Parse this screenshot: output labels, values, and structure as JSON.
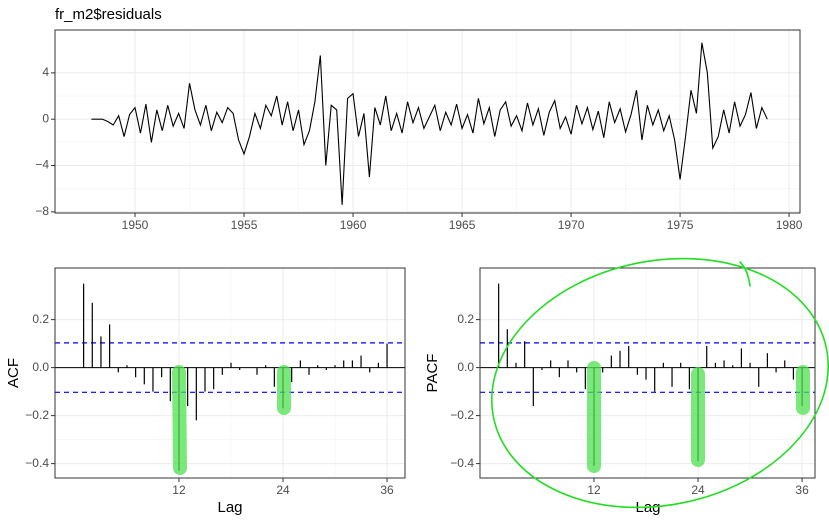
{
  "chart_data": [
    {
      "type": "line",
      "title": "fr_m2$residuals",
      "color": "#000000",
      "grid": true,
      "x": [
        1948,
        1948.25,
        1948.5,
        1948.75,
        1949,
        1949.25,
        1949.5,
        1949.75,
        1950,
        1950.25,
        1950.5,
        1950.75,
        1951,
        1951.25,
        1951.5,
        1951.75,
        1952,
        1952.25,
        1952.5,
        1952.75,
        1953,
        1953.25,
        1953.5,
        1953.75,
        1954,
        1954.25,
        1954.5,
        1954.75,
        1955,
        1955.25,
        1955.5,
        1955.75,
        1956,
        1956.25,
        1956.5,
        1956.75,
        1957,
        1957.25,
        1957.5,
        1957.75,
        1958,
        1958.25,
        1958.5,
        1958.75,
        1959,
        1959.25,
        1959.5,
        1959.75,
        1960,
        1960.25,
        1960.5,
        1960.75,
        1961,
        1961.25,
        1961.5,
        1961.75,
        1962,
        1962.25,
        1962.5,
        1962.75,
        1963,
        1963.25,
        1963.5,
        1963.75,
        1964,
        1964.25,
        1964.5,
        1964.75,
        1965,
        1965.25,
        1965.5,
        1965.75,
        1966,
        1966.25,
        1966.5,
        1966.75,
        1967,
        1967.25,
        1967.5,
        1967.75,
        1968,
        1968.25,
        1968.5,
        1968.75,
        1969,
        1969.25,
        1969.5,
        1969.75,
        1970,
        1970.25,
        1970.5,
        1970.75,
        1971,
        1971.25,
        1971.5,
        1971.75,
        1972,
        1972.25,
        1972.5,
        1972.75,
        1973,
        1973.25,
        1973.5,
        1973.75,
        1974,
        1974.25,
        1974.5,
        1974.75,
        1975,
        1975.25,
        1975.5,
        1975.75,
        1976,
        1976.25,
        1976.5,
        1976.75,
        1977,
        1977.25,
        1977.5,
        1977.75,
        1978,
        1978.25,
        1978.5,
        1978.75,
        1979
      ],
      "values": [
        0,
        0,
        0,
        -0.2,
        -0.5,
        0.3,
        -1.5,
        0.4,
        1.0,
        -1.2,
        1.3,
        -2.0,
        0.8,
        -1.0,
        1.2,
        -0.6,
        0.5,
        -0.8,
        3.1,
        0.8,
        -0.5,
        1.2,
        -1.0,
        0.6,
        -0.3,
        1.0,
        0.5,
        -1.8,
        -3.0,
        -1.5,
        0.5,
        -0.8,
        1.2,
        0.3,
        2.0,
        -0.5,
        1.5,
        -1.0,
        0.8,
        -2.2,
        -1.0,
        1.5,
        5.5,
        -4.0,
        1.2,
        0.8,
        -7.4,
        1.8,
        2.2,
        -1.5,
        0.5,
        -5.0,
        1.0,
        -0.5,
        2.0,
        -1.0,
        0.5,
        -1.2,
        1.5,
        -0.3,
        1.0,
        -0.8,
        0.2,
        1.2,
        -1.0,
        0.6,
        -0.5,
        1.3,
        -0.8,
        0.4,
        -1.2,
        1.8,
        -0.4,
        1.0,
        -1.5,
        0.8,
        1.5,
        -0.6,
        0.3,
        -1.0,
        1.4,
        -0.5,
        0.9,
        -1.4,
        0.6,
        1.6,
        -0.8,
        0.2,
        -1.3,
        1.2,
        -0.4,
        1.0,
        -0.9,
        0.7,
        -1.6,
        1.5,
        -0.3,
        0.9,
        -1.1,
        0.4,
        2.5,
        -1.8,
        1.2,
        -0.5,
        0.8,
        -1.0,
        0.3,
        -1.8,
        -5.2,
        -1.5,
        2.5,
        0.5,
        6.6,
        4.0,
        -2.5,
        -1.5,
        0.8,
        -1.2,
        1.5,
        -0.6,
        0.4,
        2.3,
        -0.8,
        1.0,
        0.0
      ],
      "xlim": [
        1946.33,
        1980.5
      ],
      "xticks": [
        1950,
        1955,
        1960,
        1965,
        1970,
        1975,
        1980
      ],
      "ylim": [
        -8.1,
        7.7
      ],
      "yticks": [
        {
          "value": -8,
          "label": "−8"
        },
        {
          "value": -4,
          "label": "−4"
        },
        0,
        4
      ]
    },
    {
      "type": "bar",
      "ylabel": "ACF",
      "xlabel": "Lag",
      "color": "#000000",
      "grid": true,
      "conf_limit": 0.103,
      "conf_color": "#0000ff",
      "x": [
        1,
        2,
        3,
        4,
        5,
        6,
        7,
        8,
        9,
        10,
        11,
        12,
        13,
        14,
        15,
        16,
        17,
        18,
        19,
        20,
        21,
        22,
        23,
        24,
        25,
        26,
        27,
        28,
        29,
        30,
        31,
        32,
        33,
        34,
        35,
        36
      ],
      "values": [
        0.35,
        0.27,
        0.13,
        0.18,
        -0.02,
        0.01,
        -0.04,
        -0.07,
        -0.1,
        -0.04,
        -0.14,
        -0.43,
        -0.16,
        -0.22,
        -0.1,
        -0.09,
        -0.03,
        0.02,
        -0.01,
        0.0,
        -0.03,
        0.01,
        -0.08,
        -0.17,
        -0.06,
        0.03,
        -0.03,
        0.01,
        -0.01,
        0.01,
        0.03,
        0.03,
        0.05,
        -0.02,
        0.02,
        0.1
      ],
      "xlim": [
        -2.3,
        38.07
      ],
      "xticks": [
        12,
        24,
        36
      ],
      "ylim": [
        -0.46,
        0.415
      ],
      "yticks": [
        {
          "value": -0.4,
          "label": "−0.4"
        },
        {
          "value": -0.2,
          "label": "−0.2"
        },
        {
          "value": 0,
          "label": "0.0"
        },
        0.2
      ]
    },
    {
      "type": "bar",
      "ylabel": "PACF",
      "xlabel": "Lag",
      "color": "#000000",
      "grid": true,
      "conf_limit": 0.103,
      "conf_color": "#0000ff",
      "x": [
        1,
        2,
        3,
        4,
        5,
        6,
        7,
        8,
        9,
        10,
        11,
        12,
        13,
        14,
        15,
        16,
        17,
        18,
        19,
        20,
        21,
        22,
        23,
        24,
        25,
        26,
        27,
        28,
        29,
        30,
        31,
        32,
        33,
        34,
        35,
        36
      ],
      "values": [
        0.35,
        0.16,
        0.02,
        0.11,
        -0.16,
        -0.01,
        0.03,
        -0.04,
        0.03,
        -0.02,
        -0.09,
        -0.41,
        -0.02,
        0.05,
        0.07,
        0.09,
        -0.03,
        -0.05,
        -0.1,
        0.02,
        -0.08,
        0.02,
        -0.09,
        -0.39,
        0.09,
        0.02,
        0.03,
        0.01,
        0.08,
        0.02,
        -0.08,
        0.06,
        -0.02,
        0.03,
        -0.05,
        -0.16
      ],
      "xlim": [
        -1.15,
        37.49
      ],
      "xticks": [
        12,
        24,
        36
      ],
      "ylim": [
        -0.46,
        0.415
      ],
      "yticks": [
        {
          "value": -0.4,
          "label": "−0.4"
        },
        {
          "value": -0.2,
          "label": "−0.2"
        },
        {
          "value": 0,
          "label": "0.0"
        },
        0.2
      ]
    }
  ]
}
